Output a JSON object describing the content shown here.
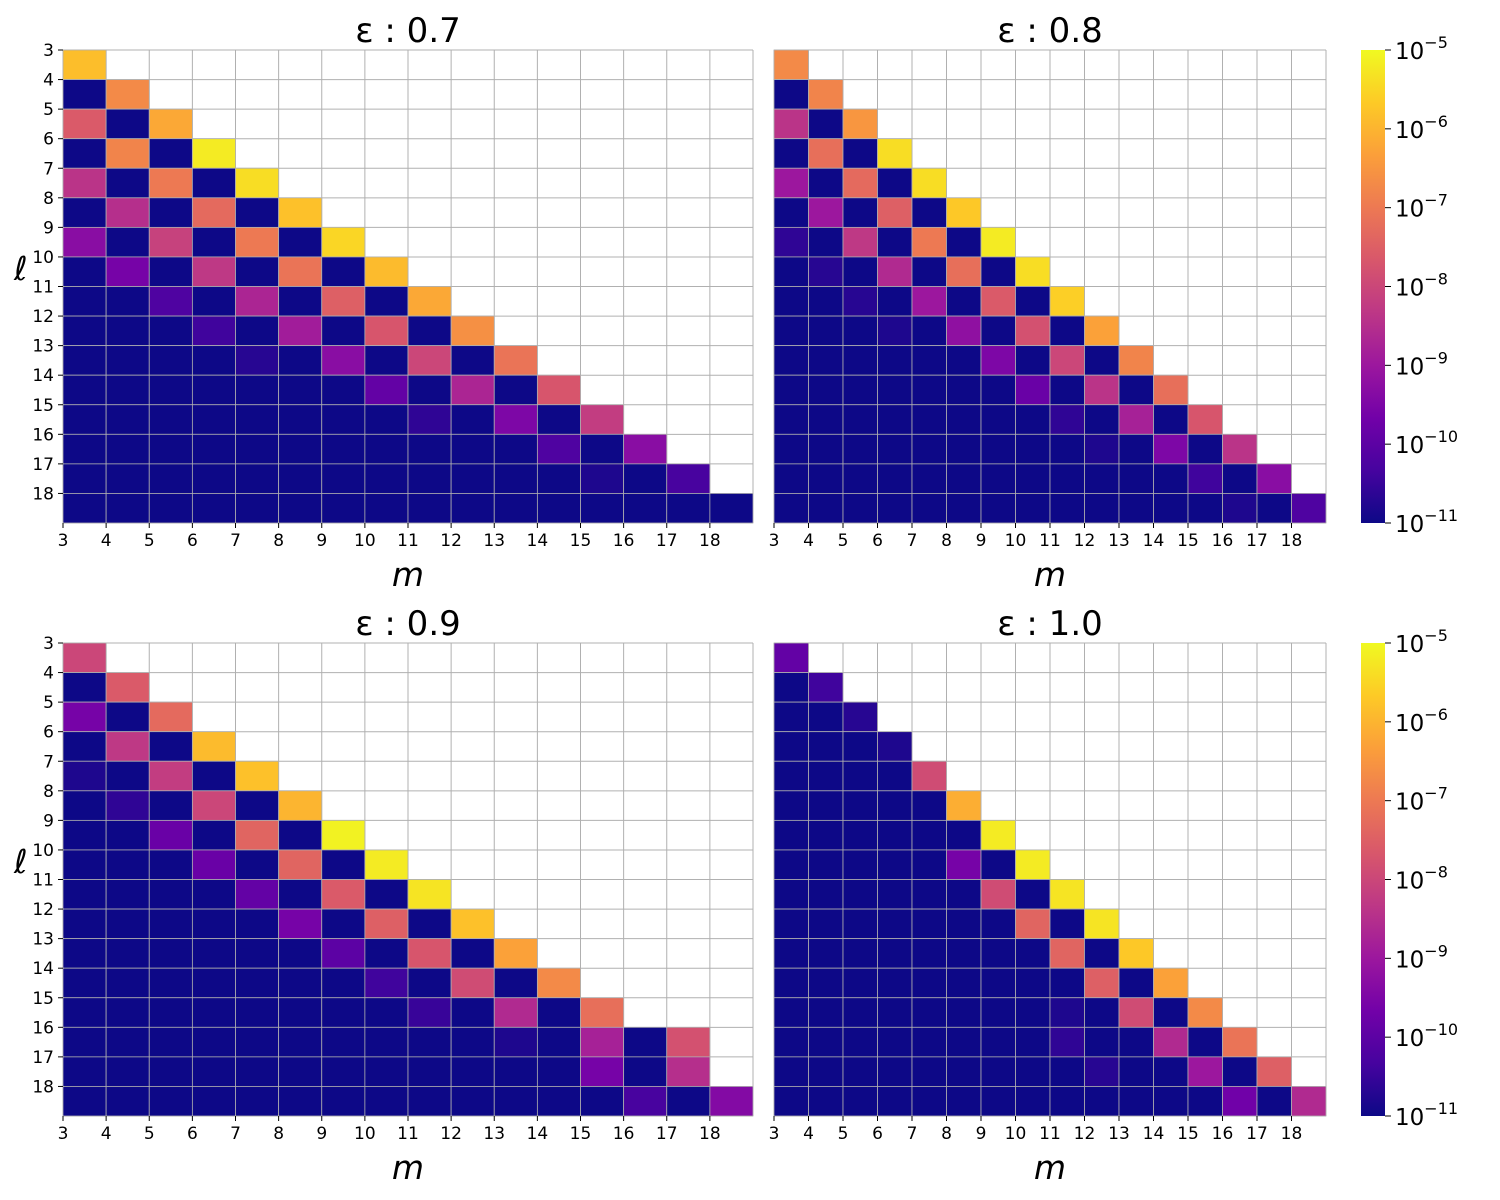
{
  "chart_data": [
    {
      "type": "heatmap",
      "title": "ε : 0.7",
      "xlabel": "m",
      "ylabel": "ℓ",
      "x_ticks": [
        "3",
        "4",
        "5",
        "6",
        "7",
        "8",
        "9",
        "10",
        "11",
        "12",
        "13",
        "14",
        "15",
        "16",
        "17",
        "18"
      ],
      "y_ticks": [
        "3",
        "4",
        "5",
        "6",
        "7",
        "8",
        "9",
        "10",
        "11",
        "12",
        "13",
        "14",
        "15",
        "16",
        "17",
        "18"
      ],
      "log10_values": [
        [
          -5.85
        ],
        [
          -11,
          -6.7
        ],
        [
          -7.6,
          -11,
          -6.2
        ],
        [
          -11,
          -6.8,
          -11,
          -5.2
        ],
        [
          -8.4,
          -11,
          -7.0,
          -11,
          -5.4
        ],
        [
          -11,
          -8.5,
          -11,
          -7.3,
          -11,
          -5.8
        ],
        [
          -9.3,
          -11,
          -8.1,
          -11,
          -7.0,
          -11,
          -5.5
        ],
        [
          -11,
          -9.6,
          -11,
          -8.3,
          -11,
          -7.1,
          -11,
          -5.9
        ],
        [
          -11,
          -11,
          -10.2,
          -11,
          -8.7,
          -11,
          -7.5,
          -11,
          -6.2
        ],
        [
          -11,
          -11,
          -11,
          -10.4,
          -11,
          -8.9,
          -11,
          -7.7,
          -11,
          -6.6
        ],
        [
          -11,
          -11,
          -11,
          -11,
          -10.7,
          -11,
          -9.3,
          -11,
          -8.0,
          -11,
          -7.1
        ],
        [
          -11,
          -11,
          -11,
          -11,
          -11,
          -11,
          -11,
          -9.9,
          -11,
          -8.7,
          -11,
          -7.7
        ],
        [
          -11,
          -11,
          -11,
          -11,
          -11,
          -11,
          -11,
          -11,
          -10.6,
          -11,
          -9.5,
          -11,
          -8.2
        ],
        [
          -11,
          -11,
          -11,
          -11,
          -11,
          -11,
          -11,
          -11,
          -11,
          -11,
          -11,
          -10.2,
          -11,
          -9.3
        ],
        [
          -11,
          -11,
          -11,
          -11,
          -11,
          -11,
          -11,
          -11,
          -11,
          -11,
          -11,
          -11,
          -10.8,
          -11,
          -10.3
        ],
        [
          -11,
          -11,
          -11,
          -11,
          -11,
          -11,
          -11,
          -11,
          -11,
          -11,
          -11,
          -11,
          -11,
          -11,
          -11,
          -11
        ]
      ]
    },
    {
      "type": "heatmap",
      "title": "ε : 0.8",
      "xlabel": "m",
      "ylabel": "",
      "x_ticks": [
        "3",
        "4",
        "5",
        "6",
        "7",
        "8",
        "9",
        "10",
        "11",
        "12",
        "13",
        "14",
        "15",
        "16",
        "17",
        "18"
      ],
      "y_ticks": [],
      "log10_values": [
        [
          -6.7
        ],
        [
          -11,
          -6.8
        ],
        [
          -8.4,
          -11,
          -6.5
        ],
        [
          -11,
          -7.2,
          -11,
          -5.4
        ],
        [
          -9.0,
          -11,
          -7.3,
          -11,
          -5.4
        ],
        [
          -11,
          -9.0,
          -11,
          -7.5,
          -11,
          -5.7
        ],
        [
          -10.6,
          -11,
          -8.3,
          -11,
          -7.0,
          -11,
          -5.2
        ],
        [
          -11,
          -10.7,
          -11,
          -8.6,
          -11,
          -7.2,
          -11,
          -5.4
        ],
        [
          -11,
          -11,
          -10.7,
          -11,
          -9.0,
          -11,
          -7.6,
          -11,
          -5.6
        ],
        [
          -11,
          -11,
          -11,
          -10.8,
          -11,
          -9.2,
          -11,
          -7.8,
          -11,
          -6.3
        ],
        [
          -11,
          -11,
          -11,
          -11,
          -11,
          -11,
          -9.5,
          -11,
          -8.0,
          -11,
          -6.8
        ],
        [
          -11,
          -11,
          -11,
          -11,
          -11,
          -11,
          -11,
          -9.8,
          -11,
          -8.4,
          -11,
          -7.2
        ],
        [
          -11,
          -11,
          -11,
          -11,
          -11,
          -11,
          -11,
          -11,
          -10.6,
          -11,
          -8.8,
          -11,
          -7.7
        ],
        [
          -11,
          -11,
          -11,
          -11,
          -11,
          -11,
          -11,
          -11,
          -11,
          -10.8,
          -11,
          -9.5,
          -11,
          -8.4
        ],
        [
          -11,
          -11,
          -11,
          -11,
          -11,
          -11,
          -11,
          -11,
          -11,
          -11,
          -11,
          -11,
          -10.4,
          -11,
          -9.3
        ],
        [
          -11,
          -11,
          -11,
          -11,
          -11,
          -11,
          -11,
          -11,
          -11,
          -11,
          -11,
          -11,
          -11,
          -10.8,
          -11,
          -10.2
        ]
      ]
    },
    {
      "type": "heatmap",
      "title": "ε : 0.9",
      "xlabel": "m",
      "ylabel": "ℓ",
      "x_ticks": [
        "3",
        "4",
        "5",
        "6",
        "7",
        "8",
        "9",
        "10",
        "11",
        "12",
        "13",
        "14",
        "15",
        "16",
        "17",
        "18"
      ],
      "y_ticks": [
        "3",
        "4",
        "5",
        "6",
        "7",
        "8",
        "9",
        "10",
        "11",
        "12",
        "13",
        "14",
        "15",
        "16",
        "17",
        "18"
      ],
      "log10_values": [
        [
          -8.0
        ],
        [
          -11,
          -7.6
        ],
        [
          -9.6,
          -11,
          -7.3
        ],
        [
          -11,
          -8.3,
          -11,
          -5.9
        ],
        [
          -10.8,
          -11,
          -8.2,
          -11,
          -5.8
        ],
        [
          -11,
          -10.6,
          -11,
          -8.0,
          -11,
          -6.0
        ],
        [
          -11,
          -11,
          -9.8,
          -11,
          -7.4,
          -11,
          -5.1
        ],
        [
          -11,
          -11,
          -11,
          -9.8,
          -11,
          -7.4,
          -11,
          -5.2
        ],
        [
          -11,
          -11,
          -11,
          -11,
          -9.9,
          -11,
          -7.6,
          -11,
          -5.3
        ],
        [
          -11,
          -11,
          -11,
          -11,
          -11,
          -9.6,
          -11,
          -7.5,
          -11,
          -5.8
        ],
        [
          -11,
          -11,
          -11,
          -11,
          -11,
          -11,
          -10.0,
          -11,
          -7.7,
          -11,
          -6.3
        ],
        [
          -11,
          -11,
          -11,
          -11,
          -11,
          -11,
          -11,
          -10.4,
          -11,
          -7.9,
          -11,
          -6.7
        ],
        [
          -11,
          -11,
          -11,
          -11,
          -11,
          -11,
          -11,
          -11,
          -10.5,
          -11,
          -8.6,
          -11,
          -7.2
        ],
        [
          -11,
          -11,
          -11,
          -11,
          -11,
          -11,
          -11,
          -11,
          -11,
          -11,
          -10.8,
          -11,
          -8.8,
          -11,
          -7.8
        ],
        [
          -11,
          -11,
          -11,
          -11,
          -11,
          -11,
          -11,
          -11,
          -11,
          -11,
          -11,
          -11,
          -9.6,
          -11,
          -8.5
        ],
        [
          -11,
          -11,
          -11,
          -11,
          -11,
          -11,
          -11,
          -11,
          -11,
          -11,
          -11,
          -11,
          -11,
          -10.3,
          -11,
          -9.4
        ]
      ]
    },
    {
      "type": "heatmap",
      "title": "ε : 1.0",
      "xlabel": "m",
      "ylabel": "",
      "x_ticks": [
        "3",
        "4",
        "5",
        "6",
        "7",
        "8",
        "9",
        "10",
        "11",
        "12",
        "13",
        "14",
        "15",
        "16",
        "17",
        "18"
      ],
      "y_ticks": [],
      "log10_values": [
        [
          -9.9
        ],
        [
          -11,
          -10.4
        ],
        [
          -11,
          -11,
          -10.7
        ],
        [
          -11,
          -11,
          -11,
          -10.8
        ],
        [
          -11,
          -11,
          -11,
          -11,
          -7.9
        ],
        [
          -11,
          -11,
          -11,
          -11,
          -11,
          -6.1
        ],
        [
          -11,
          -11,
          -11,
          -11,
          -11,
          -11,
          -5.2
        ],
        [
          -11,
          -11,
          -11,
          -11,
          -11,
          -9.6,
          -11,
          -5.2
        ],
        [
          -11,
          -11,
          -11,
          -11,
          -11,
          -11,
          -7.9,
          -11,
          -5.3
        ],
        [
          -11,
          -11,
          -11,
          -11,
          -11,
          -11,
          -11,
          -7.4,
          -11,
          -5.3
        ],
        [
          -11,
          -11,
          -11,
          -11,
          -11,
          -11,
          -11,
          -11,
          -7.4,
          -11,
          -5.7
        ],
        [
          -11,
          -11,
          -11,
          -11,
          -11,
          -11,
          -11,
          -11,
          -11,
          -7.5,
          -11,
          -6.3
        ],
        [
          -11,
          -11,
          -11,
          -11,
          -11,
          -11,
          -11,
          -11,
          -10.8,
          -11,
          -7.9,
          -11,
          -6.7
        ],
        [
          -11,
          -11,
          -11,
          -11,
          -11,
          -11,
          -11,
          -11,
          -10.6,
          -11,
          -11,
          -8.6,
          -11,
          -7.1
        ],
        [
          -11,
          -11,
          -11,
          -11,
          -11,
          -11,
          -11,
          -11,
          -11,
          -10.7,
          -11,
          -11,
          -9.0,
          -11,
          -7.5
        ],
        [
          -11,
          -11,
          -11,
          -11,
          -11,
          -11,
          -11,
          -11,
          -11,
          -11,
          -11,
          -11,
          -11,
          -9.7,
          -11,
          -8.6
        ]
      ]
    }
  ],
  "colorbar": {
    "scale": "log",
    "colormap": "plasma",
    "range": [
      1e-11,
      1e-05
    ],
    "ticks": [
      {
        "base": "10",
        "exp": "−5"
      },
      {
        "base": "10",
        "exp": "−6"
      },
      {
        "base": "10",
        "exp": "−7"
      },
      {
        "base": "10",
        "exp": "−8"
      },
      {
        "base": "10",
        "exp": "−9"
      },
      {
        "base": "10",
        "exp": "−10"
      },
      {
        "base": "10",
        "exp": "−11"
      }
    ]
  },
  "colors": {
    "grid": "#b0b0b0",
    "plasma_stops": [
      "#0d0887",
      "#46039f",
      "#7201a8",
      "#9c179e",
      "#bd3786",
      "#d8576b",
      "#ed7953",
      "#fb9f3a",
      "#fdca26",
      "#f0f921"
    ]
  }
}
